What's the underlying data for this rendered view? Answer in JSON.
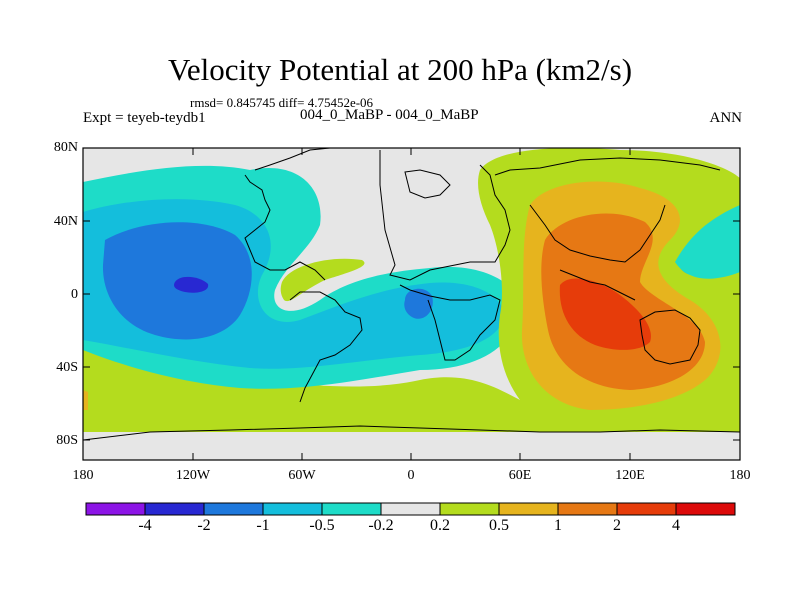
{
  "title": "Velocity Potential at 200 hPa (km2/s)",
  "stats": "rmsd= 0.845745 diff= 4.75452e-06",
  "expt": "Expt = teyeb-teydb1",
  "subtitle": "004_0_MaBP - 004_0_MaBP",
  "season": "ANN",
  "y_ticks": [
    "80N",
    "40N",
    "0",
    "40S",
    "80S"
  ],
  "x_ticks": [
    "180",
    "120W",
    "60W",
    "0",
    "60E",
    "120E",
    "180"
  ],
  "colorbar": {
    "labels": [
      "-4",
      "-2",
      "-1",
      "-0.5",
      "-0.2",
      "0.2",
      "0.5",
      "1",
      "2",
      "4"
    ],
    "colors": [
      "#8c14e6",
      "#2828d2",
      "#1e78dc",
      "#14bedc",
      "#1edcc8",
      "#e6e6e6",
      "#b4dc1e",
      "#e6b41e",
      "#e67814",
      "#e63c0a",
      "#dc0a0a"
    ]
  },
  "field_colors": {
    "grey": "#e6e6e6",
    "green": "#b4dc1e",
    "aqua": "#1edcc8",
    "cyan": "#14bedc",
    "blue": "#1e78dc",
    "darkblue": "#2828d2",
    "orange": "#e6b41e",
    "darkorange": "#e67814",
    "red": "#e63c0a",
    "frame": "#000000",
    "coast": "#000000"
  }
}
